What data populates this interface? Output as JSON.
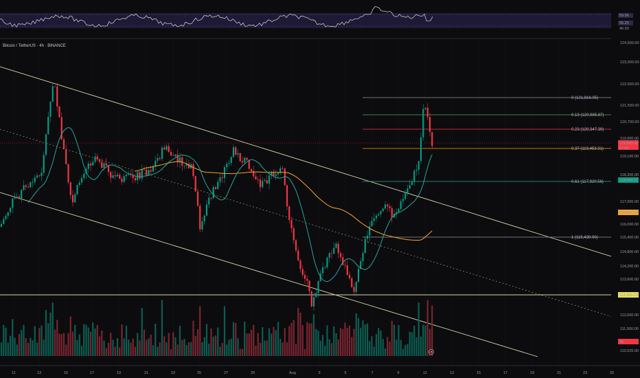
{
  "chart_title": "Bitcoin / TetherUS · 4h · BINANCE",
  "rsi": {
    "labels": [
      "59.96",
      "55.25",
      "40.00"
    ]
  },
  "price_axis": {
    "ticks": [
      "124,500.00",
      "123,500.00",
      "122,500.00",
      "121,500.00",
      "120,700.00",
      "119,900.00",
      "119,100.00",
      "118,300.00",
      "117,000.00",
      "116,000.00",
      "115,400.00",
      "114,800.00",
      "114,200.00",
      "113,600.00",
      "112,000.00",
      "111,500.00",
      "110,525.00"
    ],
    "badges": [
      {
        "name": "last-price",
        "text": "119,900.00",
        "sub": "57:53",
        "color": "#f23645"
      },
      {
        "name": "ma-fast",
        "text": "118,004.17",
        "color": "#089981"
      },
      {
        "name": "ma-slow",
        "text": "116,867.93",
        "color": "#f7a534"
      },
      {
        "name": "support",
        "text": "112,920.13",
        "color": "#e8e15c"
      },
      {
        "name": "volume",
        "text": "2K",
        "color": "#f23645"
      }
    ]
  },
  "time_axis": [
    "11",
    "13",
    "15",
    "17",
    "19",
    "21",
    "23",
    "25",
    "27",
    "29",
    "Aug",
    "3",
    "5",
    "7",
    "9",
    "11",
    "13",
    "15",
    "17",
    "19",
    "21",
    "23",
    "25"
  ],
  "fib_levels": [
    {
      "label": "0 (121,816.05)",
      "color": "#9598a1"
    },
    {
      "label": "0.13 (120,985.87)",
      "color": "#4caf50"
    },
    {
      "label": "0.23 (120,347.39)",
      "color": "#f23645"
    },
    {
      "label": "0.37 (119,453.31)",
      "color": "#ff9800"
    },
    {
      "label": "0.61 (117,920.56)",
      "color": "#26a69a"
    },
    {
      "label": "1 (115,430.00)",
      "color": "#9598a1"
    }
  ],
  "chart_data": {
    "type": "candlestick",
    "title": "Bitcoin / TetherUS · 4h · BINANCE",
    "ylim": [
      110525,
      124500
    ],
    "up_color": "#089981",
    "down_color": "#f23645",
    "last_price": 119900,
    "support_level": 112920.13,
    "ma_fast_last": 118004.17,
    "ma_slow_last": 116867.93,
    "fib_levels": [
      121816.05,
      120985.87,
      120347.39,
      119453.31,
      117920.56,
      115430.0
    ]
  }
}
